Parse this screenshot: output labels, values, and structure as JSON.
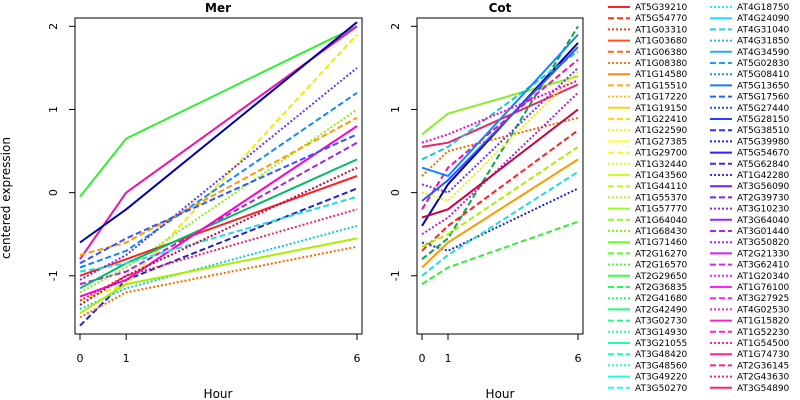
{
  "chart_data": [
    {
      "type": "line",
      "title": "Mer",
      "xlabel": "Hour",
      "ylabel": "centered expression",
      "x": [
        0,
        1,
        6
      ],
      "x_ticks": [
        "0",
        "1",
        "6"
      ],
      "y_ticks": [
        "-1",
        "0",
        "1",
        "2"
      ],
      "ylim": [
        -1.7,
        2.1
      ],
      "grid": false,
      "legend": "none",
      "series": [
        {
          "values": [
            -0.05,
            0.65,
            2.0
          ],
          "color": "#33EE33"
        },
        {
          "values": [
            -1.6,
            -1.05,
            0.05
          ],
          "color": "#2222CC"
        },
        {
          "values": [
            -1.5,
            -1.2,
            -0.65
          ],
          "color": "#FF6600"
        },
        {
          "values": [
            -0.8,
            0.0,
            2.0
          ],
          "color": "#EE11AA"
        },
        {
          "values": [
            -1.3,
            -1.1,
            1.9
          ],
          "color": "#EEEE00"
        },
        {
          "values": [
            -1.4,
            -1.15,
            -0.4
          ],
          "color": "#11CCCC"
        },
        {
          "values": [
            -0.6,
            -0.2,
            2.05
          ],
          "color": "#0000AA"
        },
        {
          "values": [
            -1.1,
            -0.95,
            0.6
          ],
          "color": "#AA22DD"
        },
        {
          "values": [
            -1.2,
            -0.9,
            1.0
          ],
          "color": "#88EE22"
        },
        {
          "values": [
            -1.0,
            -0.8,
            0.2
          ],
          "color": "#FF2222"
        },
        {
          "values": [
            -0.9,
            -0.7,
            1.2
          ],
          "color": "#1188FF"
        },
        {
          "values": [
            -1.3,
            -1.0,
            -0.2
          ],
          "color": "#EE2266"
        },
        {
          "values": [
            -1.15,
            -0.85,
            0.4
          ],
          "color": "#00BB66"
        },
        {
          "values": [
            -0.75,
            -0.6,
            0.9
          ],
          "color": "#FF9900"
        },
        {
          "values": [
            -1.05,
            -0.75,
            1.5
          ],
          "color": "#6633FF"
        },
        {
          "values": [
            -1.25,
            -1.05,
            0.8
          ],
          "color": "#FF00CC"
        },
        {
          "values": [
            -0.95,
            -0.85,
            -0.05
          ],
          "color": "#22DDDD"
        },
        {
          "values": [
            -1.35,
            -1.0,
            0.3
          ],
          "color": "#CC0044"
        },
        {
          "values": [
            -1.45,
            -1.1,
            -0.55
          ],
          "color": "#AAEE00"
        },
        {
          "values": [
            -0.85,
            -0.55,
            0.7
          ],
          "color": "#3355FF"
        }
      ]
    },
    {
      "type": "line",
      "title": "Cot",
      "xlabel": "Hour",
      "ylabel": "",
      "x": [
        0,
        1,
        6
      ],
      "x_ticks": [
        "0",
        "1",
        "6"
      ],
      "y_ticks": [
        "-1",
        "0",
        "1",
        "2"
      ],
      "ylim": [
        -1.7,
        2.1
      ],
      "grid": false,
      "legend": "none",
      "series": [
        {
          "values": [
            0.7,
            0.95,
            1.4
          ],
          "color": "#88EE22"
        },
        {
          "values": [
            -1.1,
            -0.9,
            -0.35
          ],
          "color": "#33EE33"
        },
        {
          "values": [
            -0.6,
            -0.7,
            0.05
          ],
          "color": "#2222CC"
        },
        {
          "values": [
            0.55,
            0.6,
            1.3
          ],
          "color": "#EE2266"
        },
        {
          "values": [
            -0.8,
            -0.55,
            2.0
          ],
          "color": "#00AA44"
        },
        {
          "values": [
            0.2,
            0.5,
            0.9
          ],
          "color": "#FF6600"
        },
        {
          "values": [
            -0.4,
            0.1,
            1.8
          ],
          "color": "#0000AA"
        },
        {
          "values": [
            -0.2,
            0.3,
            1.6
          ],
          "color": "#EE11AA"
        },
        {
          "values": [
            0.0,
            -0.1,
            1.45
          ],
          "color": "#EEEE00"
        },
        {
          "values": [
            -0.9,
            -0.6,
            0.4
          ],
          "color": "#FF9900"
        },
        {
          "values": [
            0.4,
            0.55,
            1.7
          ],
          "color": "#11CCCC"
        },
        {
          "values": [
            -0.5,
            -0.3,
            1.2
          ],
          "color": "#AA22DD"
        },
        {
          "values": [
            0.3,
            0.2,
            1.9
          ],
          "color": "#1188FF"
        },
        {
          "values": [
            -0.7,
            -0.4,
            0.75
          ],
          "color": "#FF2222"
        },
        {
          "values": [
            0.1,
            0.0,
            1.5
          ],
          "color": "#6633FF"
        },
        {
          "values": [
            -0.3,
            -0.2,
            1.0
          ],
          "color": "#CC0044"
        },
        {
          "values": [
            -1.0,
            -0.75,
            0.25
          ],
          "color": "#22DDDD"
        },
        {
          "values": [
            0.6,
            0.7,
            1.35
          ],
          "color": "#FF00CC"
        },
        {
          "values": [
            -0.1,
            0.15,
            1.75
          ],
          "color": "#3355FF"
        },
        {
          "values": [
            -0.65,
            -0.5,
            0.55
          ],
          "color": "#AAEE00"
        }
      ]
    }
  ],
  "legend_entries": [
    {
      "label": "AT5G39210",
      "color": "#FF2222",
      "dash": "solid"
    },
    {
      "label": "AT5G54770",
      "color": "#FF3311",
      "dash": "dashed"
    },
    {
      "label": "AT1G03310",
      "color": "#FF4411",
      "dash": "dotted"
    },
    {
      "label": "AT1G03680",
      "color": "#FF5511",
      "dash": "solid"
    },
    {
      "label": "AT1G06380",
      "color": "#FF6611",
      "dash": "dashed"
    },
    {
      "label": "AT1G08380",
      "color": "#FF7711",
      "dash": "dotted"
    },
    {
      "label": "AT1G14580",
      "color": "#FF8811",
      "dash": "solid"
    },
    {
      "label": "AT1G15510",
      "color": "#FFAA11",
      "dash": "dashed"
    },
    {
      "label": "AT1G17220",
      "color": "#FFBB11",
      "dash": "dotted"
    },
    {
      "label": "AT1G19150",
      "color": "#FFCC11",
      "dash": "solid"
    },
    {
      "label": "AT1G22410",
      "color": "#FFDD11",
      "dash": "dashed"
    },
    {
      "label": "AT1G22590",
      "color": "#FFEE11",
      "dash": "dotted"
    },
    {
      "label": "AT1G27385",
      "color": "#FFFF22",
      "dash": "solid"
    },
    {
      "label": "AT1G29700",
      "color": "#EEFF22",
      "dash": "dashed"
    },
    {
      "label": "AT1G32440",
      "color": "#DDFF22",
      "dash": "dotted"
    },
    {
      "label": "AT1G43560",
      "color": "#CCFF22",
      "dash": "solid"
    },
    {
      "label": "AT1G44110",
      "color": "#BBFF22",
      "dash": "dashed"
    },
    {
      "label": "AT1G55370",
      "color": "#AAFF22",
      "dash": "dotted"
    },
    {
      "label": "AT1G57770",
      "color": "#99FF22",
      "dash": "solid"
    },
    {
      "label": "AT1G64040",
      "color": "#88FF22",
      "dash": "dashed"
    },
    {
      "label": "AT1G68430",
      "color": "#77FF22",
      "dash": "dotted"
    },
    {
      "label": "AT1G71460",
      "color": "#66FF22",
      "dash": "solid"
    },
    {
      "label": "AT2G16270",
      "color": "#55FF22",
      "dash": "dashed"
    },
    {
      "label": "AT2G16570",
      "color": "#44FF33",
      "dash": "dotted"
    },
    {
      "label": "AT2G29650",
      "color": "#33FF44",
      "dash": "solid"
    },
    {
      "label": "AT2G36835",
      "color": "#22FF55",
      "dash": "dashed"
    },
    {
      "label": "AT2G41680",
      "color": "#22FF66",
      "dash": "dotted"
    },
    {
      "label": "AT2G42490",
      "color": "#22FF77",
      "dash": "solid"
    },
    {
      "label": "AT3G02730",
      "color": "#22FF88",
      "dash": "dashed"
    },
    {
      "label": "AT3G14930",
      "color": "#22FF99",
      "dash": "dotted"
    },
    {
      "label": "AT3G21055",
      "color": "#22FFAA",
      "dash": "solid"
    },
    {
      "label": "AT3G48420",
      "color": "#22FFBB",
      "dash": "dashed"
    },
    {
      "label": "AT3G48560",
      "color": "#22FFCC",
      "dash": "dotted"
    },
    {
      "label": "AT3G49220",
      "color": "#22FFDD",
      "dash": "solid"
    },
    {
      "label": "AT3G50270",
      "color": "#22FFEE",
      "dash": "dashed"
    },
    {
      "label": "AT4G18750",
      "color": "#22EEFF",
      "dash": "dotted"
    },
    {
      "label": "AT4G24090",
      "color": "#22DDFF",
      "dash": "solid"
    },
    {
      "label": "AT4G31040",
      "color": "#22CCFF",
      "dash": "dashed"
    },
    {
      "label": "AT4G31850",
      "color": "#22BBFF",
      "dash": "dotted"
    },
    {
      "label": "AT4G34590",
      "color": "#22AAFF",
      "dash": "solid"
    },
    {
      "label": "AT5G02830",
      "color": "#2299FF",
      "dash": "dashed"
    },
    {
      "label": "AT5G08410",
      "color": "#2288FF",
      "dash": "dotted"
    },
    {
      "label": "AT5G13650",
      "color": "#2277FF",
      "dash": "solid"
    },
    {
      "label": "AT5G17560",
      "color": "#2266FF",
      "dash": "dashed"
    },
    {
      "label": "AT5G27440",
      "color": "#2255FF",
      "dash": "dotted"
    },
    {
      "label": "AT5G28150",
      "color": "#2244FF",
      "dash": "solid"
    },
    {
      "label": "AT5G38510",
      "color": "#2233FF",
      "dash": "dashed"
    },
    {
      "label": "AT5G39980",
      "color": "#2222FF",
      "dash": "dotted"
    },
    {
      "label": "AT5G54670",
      "color": "#3322FF",
      "dash": "solid"
    },
    {
      "label": "AT5G62840",
      "color": "#4422FF",
      "dash": "dashed"
    },
    {
      "label": "AT1G42280",
      "color": "#5522FF",
      "dash": "dotted"
    },
    {
      "label": "AT3G56090",
      "color": "#6622FF",
      "dash": "solid"
    },
    {
      "label": "AT2G39730",
      "color": "#7722FF",
      "dash": "dashed"
    },
    {
      "label": "AT3G10230",
      "color": "#8822FF",
      "dash": "dotted"
    },
    {
      "label": "AT3G64040",
      "color": "#9922FF",
      "dash": "solid"
    },
    {
      "label": "AT3G01440",
      "color": "#AA22FF",
      "dash": "dashed"
    },
    {
      "label": "AT3G50820",
      "color": "#BB22FF",
      "dash": "dotted"
    },
    {
      "label": "AT2G21330",
      "color": "#CC22FF",
      "dash": "solid"
    },
    {
      "label": "AT3G62410",
      "color": "#DD22FF",
      "dash": "dashed"
    },
    {
      "label": "AT1G20340",
      "color": "#EE22FF",
      "dash": "dotted"
    },
    {
      "label": "AT1G76100",
      "color": "#FF22FF",
      "dash": "solid"
    },
    {
      "label": "AT3G27925",
      "color": "#FF22EE",
      "dash": "dashed"
    },
    {
      "label": "AT4G02530",
      "color": "#FF22DD",
      "dash": "dotted"
    },
    {
      "label": "AT1G15820",
      "color": "#FF22CC",
      "dash": "solid"
    },
    {
      "label": "AT1G52230",
      "color": "#FF22BB",
      "dash": "dashed"
    },
    {
      "label": "AT1G54500",
      "color": "#FF22AA",
      "dash": "dotted"
    },
    {
      "label": "AT1G74730",
      "color": "#FF2299",
      "dash": "solid"
    },
    {
      "label": "AT2G36145",
      "color": "#FF2288",
      "dash": "dashed"
    },
    {
      "label": "AT2G43630",
      "color": "#FF2277",
      "dash": "dotted"
    },
    {
      "label": "AT3G54890",
      "color": "#FF2266",
      "dash": "solid"
    }
  ]
}
